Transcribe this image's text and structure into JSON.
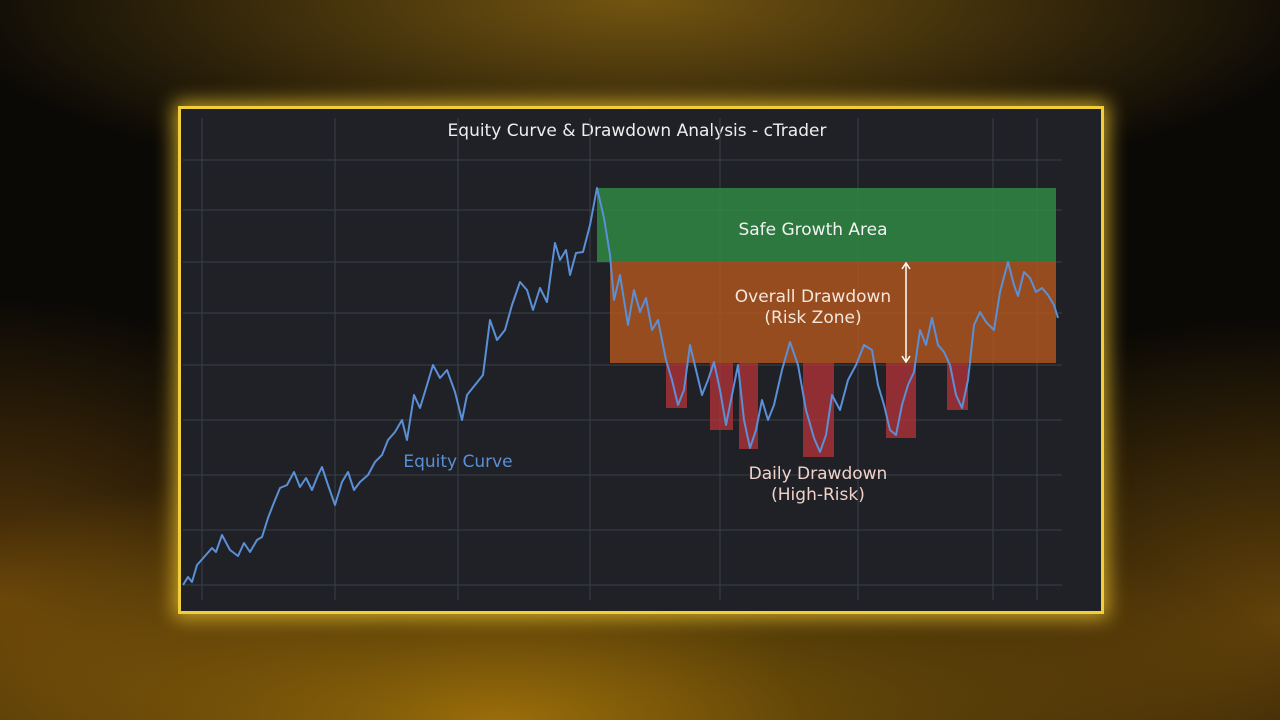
{
  "chart_data": {
    "type": "line",
    "title": "Equity Curve & Drawdown Analysis - cTrader",
    "xlim": [
      0,
      879
    ],
    "ylim": [
      0,
      482
    ],
    "xticks": [
      19,
      152,
      275,
      407,
      537,
      675,
      810,
      854
    ],
    "yticks": [
      15,
      70,
      125,
      180,
      235,
      287,
      338,
      390,
      440
    ],
    "grid": true,
    "x": [
      0,
      5,
      9,
      14,
      22,
      29,
      33,
      39,
      47,
      55,
      61,
      67,
      74,
      79,
      85,
      90,
      97,
      104,
      111,
      117,
      123,
      129,
      135,
      139,
      145,
      152,
      159,
      165,
      171,
      177,
      185,
      192,
      199,
      205,
      212,
      219,
      224,
      231,
      237,
      244,
      250,
      257,
      264,
      272,
      279,
      284,
      292,
      300,
      307,
      314,
      322,
      329,
      337,
      344,
      350,
      357,
      364,
      372,
      377,
      383,
      387,
      393,
      400,
      407,
      414,
      421,
      427,
      431,
      437,
      445,
      451,
      457,
      463,
      469,
      475,
      483,
      489,
      495,
      501,
      507,
      513,
      519,
      525,
      531,
      537,
      543,
      549,
      555,
      561,
      567,
      573,
      579,
      585,
      591,
      599,
      607,
      615,
      623,
      631,
      637,
      643,
      649,
      657,
      665,
      673,
      681,
      689,
      695,
      701,
      707,
      713,
      719,
      725,
      731,
      737,
      743,
      749,
      755,
      761,
      767,
      773,
      779,
      785,
      791,
      797,
      803,
      811,
      817,
      825,
      831,
      835,
      841,
      847,
      853,
      859,
      865,
      871,
      875
    ],
    "series": [
      {
        "name": "Equity Curve",
        "color": "#5b8fd6",
        "values": [
          15,
          23,
          18,
          35,
          44,
          52,
          48,
          65,
          50,
          44,
          57,
          48,
          60,
          63,
          82,
          95,
          112,
          115,
          128,
          113,
          122,
          110,
          125,
          133,
          115,
          95,
          118,
          128,
          110,
          118,
          125,
          138,
          145,
          160,
          168,
          180,
          160,
          205,
          192,
          215,
          235,
          222,
          230,
          208,
          180,
          205,
          215,
          225,
          280,
          260,
          270,
          295,
          318,
          310,
          290,
          312,
          298,
          357,
          340,
          350,
          325,
          347,
          348,
          375,
          412,
          382,
          345,
          300,
          325,
          275,
          310,
          288,
          302,
          270,
          280,
          240,
          220,
          195,
          210,
          255,
          230,
          205,
          220,
          238,
          210,
          175,
          205,
          235,
          180,
          152,
          170,
          200,
          180,
          195,
          230,
          258,
          235,
          190,
          162,
          148,
          165,
          205,
          190,
          220,
          235,
          255,
          250,
          215,
          195,
          170,
          165,
          195,
          215,
          228,
          270,
          255,
          282,
          255,
          248,
          235,
          205,
          192,
          220,
          275,
          288,
          278,
          270,
          308,
          338,
          315,
          304,
          328,
          322,
          308,
          312,
          305,
          295,
          282
        ]
      }
    ],
    "safe_zone": {
      "label": "Safe Growth Area",
      "color": "#2f8f46",
      "x": [
        414,
        873
      ],
      "y": [
        338,
        412
      ]
    },
    "risk_zone": {
      "label": [
        "Overall Drawdown",
        "(Risk Zone)"
      ],
      "color": "#b5581e",
      "x": [
        427,
        873
      ],
      "y": [
        237,
        338
      ]
    },
    "daily_drawdowns": {
      "label": [
        "Daily Drawdown",
        "(High-Risk)"
      ],
      "color": "#b8333a",
      "bars": [
        {
          "x": [
            483,
            504
          ],
          "y": [
            192,
            237
          ]
        },
        {
          "x": [
            527,
            550
          ],
          "y": [
            170,
            237
          ]
        },
        {
          "x": [
            556,
            575
          ],
          "y": [
            151,
            237
          ]
        },
        {
          "x": [
            620,
            651
          ],
          "y": [
            143,
            237
          ]
        },
        {
          "x": [
            703,
            733
          ],
          "y": [
            162,
            237
          ]
        },
        {
          "x": [
            764,
            785
          ],
          "y": [
            190,
            237
          ]
        }
      ]
    }
  }
}
